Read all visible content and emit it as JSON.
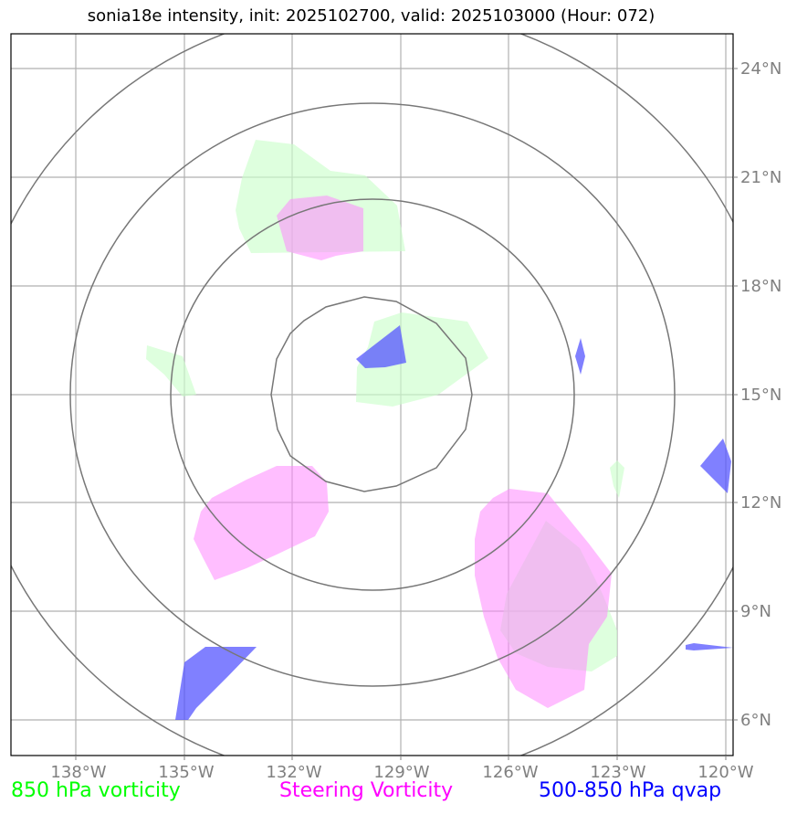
{
  "title": "sonia18e intensity, init: 2025102700, valid: 2025103000 (Hour: 072)",
  "map": {
    "extent_lon": [
      -140,
      -120
    ],
    "extent_lat": [
      5,
      25
    ],
    "lon_ticks": [
      "138°W",
      "135°W",
      "132°W",
      "129°W",
      "126°W",
      "123°W",
      "120°W"
    ],
    "lat_ticks": [
      "24°N",
      "21°N",
      "18°N",
      "15°N",
      "12°N",
      "9°N",
      "6°N"
    ],
    "range_ring_center": {
      "lon": -130,
      "lat": 15
    }
  },
  "legend": [
    {
      "label": "850 hPa vorticity",
      "color": "#00ff00"
    },
    {
      "label": "Steering Vorticity",
      "color": "#ff00ff"
    },
    {
      "label": "500-850 hPa qvap",
      "color": "#0000ff"
    }
  ],
  "colors": {
    "vorticity_850_fill": "#ccffcc",
    "steering_fill": "#ff88ff",
    "qvap_fill": "#5555ff",
    "grid": "#b0b0b0",
    "rings": "#777777",
    "tick_labels": "#808080"
  }
}
